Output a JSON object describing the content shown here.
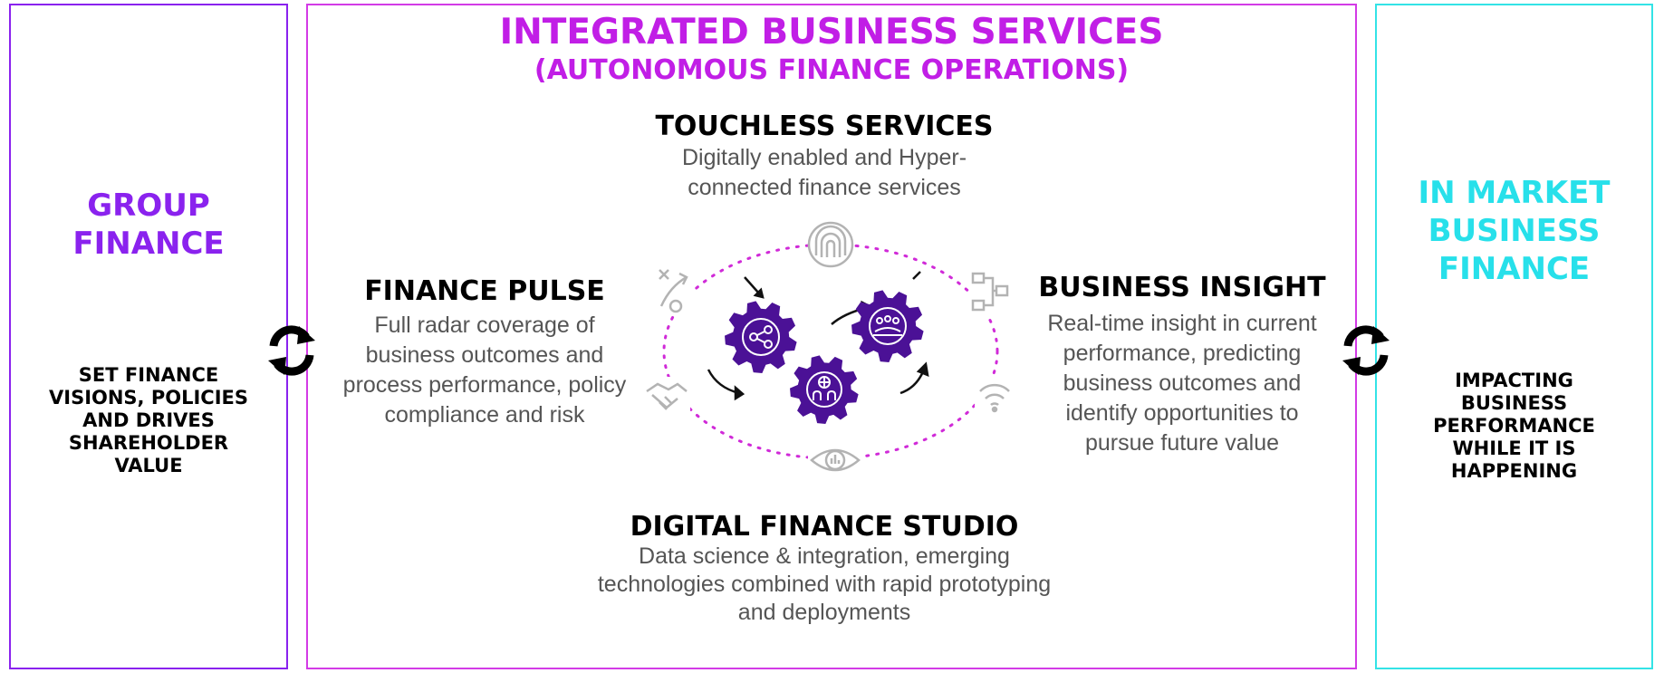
{
  "colors": {
    "group_finance": "#8a22ee",
    "integrated_border": "#d33be6",
    "integrated_title": "#c11ee6",
    "in_market": "#27e0ea",
    "gear": "#4b1196",
    "dots": "#d02ad8",
    "icon_gray": "#b3b3b3"
  },
  "left_panel": {
    "title_line1": "GROUP",
    "title_line2": "FINANCE",
    "desc_lines": [
      "SET FINANCE",
      "VISIONS, POLICIES",
      "AND DRIVES",
      "SHAREHOLDER",
      "VALUE"
    ]
  },
  "center_panel": {
    "title": "INTEGRATED BUSINESS SERVICES",
    "subtitle": "(AUTONOMOUS FINANCE OPERATIONS)",
    "touchless": {
      "title": "TOUCHLESS SERVICES",
      "lines": [
        "Digitally enabled and Hyper-",
        "connected finance services"
      ]
    },
    "finance_pulse": {
      "title": "FINANCE PULSE",
      "lines": [
        "Full radar coverage of",
        "business outcomes and",
        "process performance, policy",
        "compliance and risk"
      ]
    },
    "business_insight": {
      "title": "BUSINESS INSIGHT",
      "lines": [
        "Real-time insight in current",
        "performance, predicting",
        "business outcomes and",
        "identify opportunities to",
        "pursue future value"
      ]
    },
    "digital_studio": {
      "title": "DIGITAL FINANCE STUDIO",
      "lines": [
        "Data science & integration, emerging",
        "technologies combined with rapid prototyping",
        "and deployments"
      ]
    },
    "icons": [
      "fingerprint-icon",
      "strategy-icon",
      "workflow-icon",
      "handshake-icon",
      "wifi-icon",
      "eye-chart-icon",
      "share-icon",
      "globe-people-icon",
      "meeting-icon"
    ]
  },
  "right_panel": {
    "title_lines": [
      "IN MARKET",
      "BUSINESS",
      "FINANCE"
    ],
    "desc_lines": [
      "IMPACTING",
      "BUSINESS",
      "PERFORMANCE",
      "WHILE IT IS",
      "HAPPENING"
    ]
  }
}
